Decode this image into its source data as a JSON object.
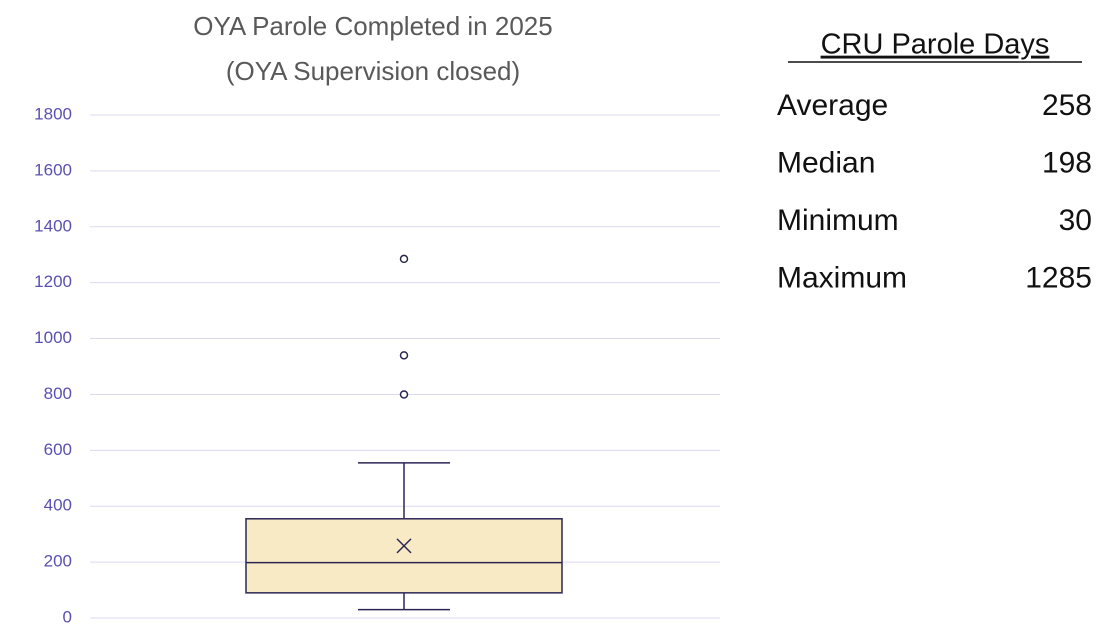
{
  "chart_data": {
    "type": "box",
    "title": "OYA Parole Completed in 2025",
    "subtitle": "(OYA Supervision closed)",
    "min": 30,
    "q1": 90,
    "median": 198,
    "q3": 355,
    "max": 555,
    "mean": 258,
    "outliers": [
      800,
      940,
      1285
    ],
    "color": "#f8eac4",
    "edge_color": "#2b2755",
    "ylim": [
      0,
      1800
    ],
    "yticks": [
      0,
      200,
      400,
      600,
      800,
      1000,
      1200,
      1400,
      1600,
      1800
    ],
    "grid": true
  },
  "stats": {
    "title": "CRU Parole Days",
    "rows": [
      [
        "Average",
        258
      ],
      [
        "Median",
        198
      ],
      [
        "Minimum",
        30
      ],
      [
        "Maximum",
        1285
      ]
    ]
  }
}
